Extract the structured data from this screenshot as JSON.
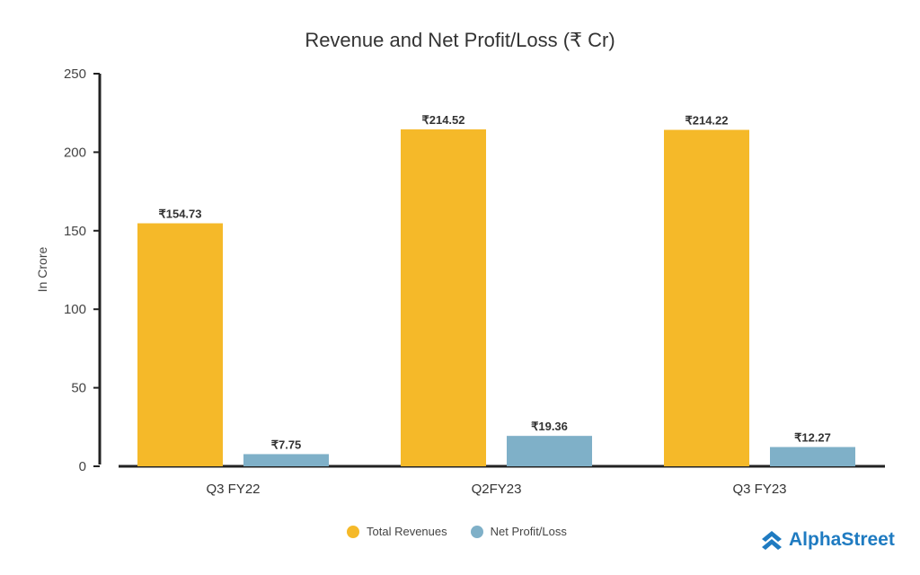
{
  "chart_data": {
    "type": "bar",
    "title": "Revenue and Net Profit/Loss (₹ Cr)",
    "xlabel": "",
    "ylabel": "In Crore",
    "ylim": [
      0,
      250
    ],
    "yticks": [
      0,
      50,
      100,
      150,
      200,
      250
    ],
    "categories": [
      "Q3 FY22",
      "Q2FY23",
      "Q3 FY23"
    ],
    "series": [
      {
        "name": "Total Revenues",
        "color": "#F5B929",
        "values": [
          154.73,
          214.52,
          214.22
        ],
        "labels": [
          "₹154.73",
          "₹214.52",
          "₹214.22"
        ]
      },
      {
        "name": "Net Profit/Loss",
        "color": "#7FB0C8",
        "values": [
          7.75,
          19.36,
          12.27
        ],
        "labels": [
          "₹7.75",
          "₹19.36",
          "₹12.27"
        ]
      }
    ],
    "legend": "bottom-center",
    "grid": false
  },
  "brand": {
    "name": "AlphaStreet",
    "color": "#1F7BC1"
  }
}
